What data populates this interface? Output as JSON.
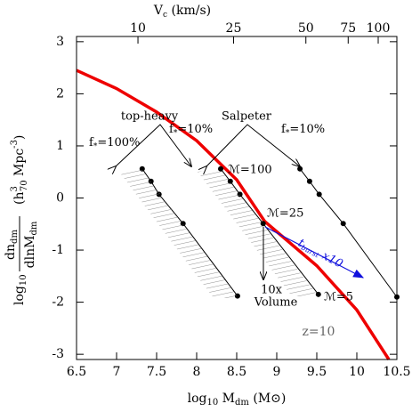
{
  "chart_data": {
    "type": "line",
    "xlabel": {
      "main": "log",
      "sub": "10",
      "rest": " M",
      "rest_sub": "dm",
      "unit": " (M⊙)"
    },
    "ylabel": {
      "log": "log",
      "log_sub": "10",
      "num": "dn",
      "num_sub": "dm",
      "den": "dlnM",
      "den_sub": "dm",
      "unit": "(h",
      "unit_sup": "3",
      "unit_sub": "70",
      "unit_mid": " Mpc",
      "unit_sup2": "-3",
      "unit_end": ")"
    },
    "x2label": {
      "main": "V",
      "sub": "c",
      "unit": " (km/s)"
    },
    "xlim": [
      6.5,
      10.5
    ],
    "ylim": [
      -3.1,
      3.1
    ],
    "xticks": [
      6.5,
      7,
      7.5,
      8,
      8.5,
      9,
      9.5,
      10,
      10.5
    ],
    "yticks": [
      -3,
      -2,
      -1,
      0,
      1,
      2,
      3
    ],
    "x2lim": [
      5.55,
      119.6
    ],
    "x2log": true,
    "x2ticks": [
      10,
      25,
      50,
      75,
      100
    ],
    "series": [
      {
        "color": "#ee0000",
        "width": 3.5,
        "markers": false,
        "x": [
          6.5,
          7,
          7.5,
          8,
          8.5,
          8.85,
          9.5,
          10,
          10.4
        ],
        "values": [
          2.45,
          2.1,
          1.65,
          1.1,
          0.35,
          -0.45,
          -1.3,
          -2.15,
          -3.1
        ]
      },
      {
        "color": "#000000",
        "width": 1,
        "markers": true,
        "x": [
          7.32,
          7.43,
          7.53,
          7.83,
          8.51
        ],
        "values": [
          0.56,
          0.32,
          0.07,
          -0.49,
          -1.88
        ]
      },
      {
        "color": "#000000",
        "width": 1,
        "markers": true,
        "x": [
          8.3,
          8.42,
          8.54,
          8.83,
          9.52
        ],
        "values": [
          0.56,
          0.32,
          0.07,
          -0.49,
          -1.85
        ]
      },
      {
        "color": "#000000",
        "width": 1,
        "markers": true,
        "x": [
          9.29,
          9.41,
          9.53,
          9.83,
          10.5
        ],
        "values": [
          0.56,
          0.32,
          0.07,
          -0.49,
          -1.9
        ]
      }
    ],
    "annotations": {
      "top_heavy": "top-heavy",
      "salpeter": "Salpeter",
      "f1": {
        "f": "f",
        "sub": "*",
        "rest": "=100%"
      },
      "f2": {
        "f": "f",
        "sub": "*",
        "rest": "=10%"
      },
      "f3": {
        "f": "f",
        "sub": "*",
        "rest": "=10%"
      },
      "m100": "ℳ=100",
      "m25": "ℳ=25",
      "m5": "ℳ=5",
      "vol1": "10x",
      "vol2": "Volume",
      "z": "z=10",
      "burst": {
        "t": "t",
        "sub": "burst",
        "rest": " x10"
      }
    }
  }
}
